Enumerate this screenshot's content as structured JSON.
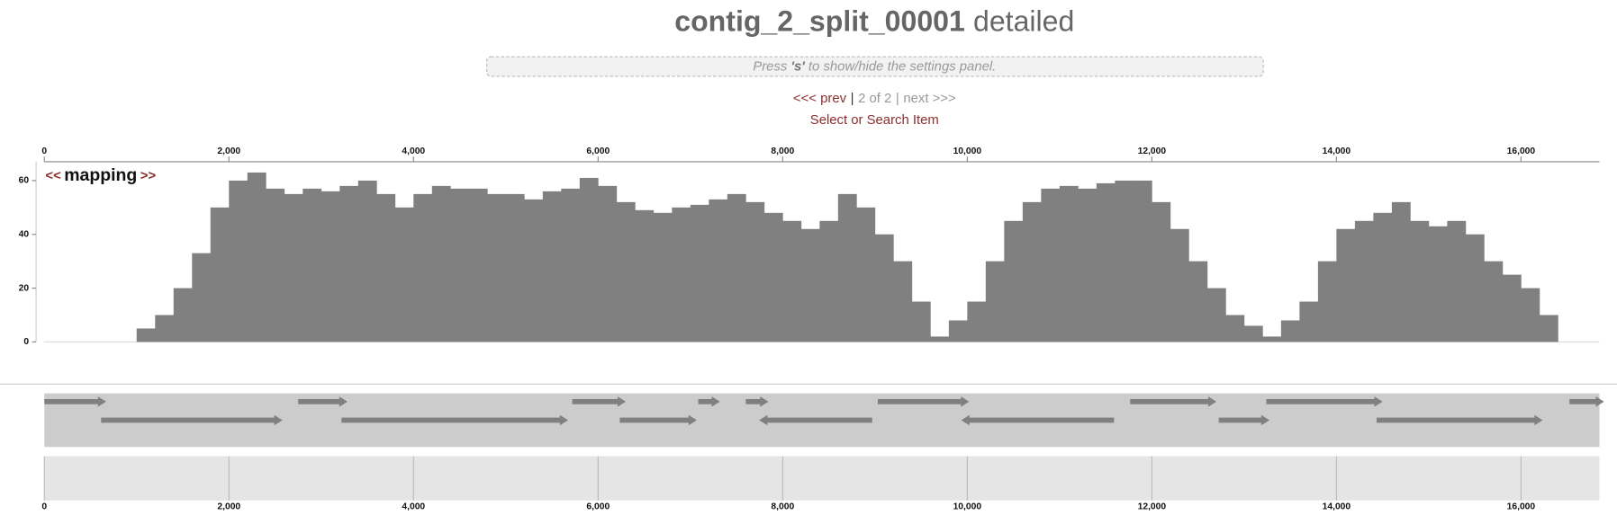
{
  "header": {
    "title": "contig_2_split_00001",
    "subtitle": "detailed",
    "settings_hint": {
      "before": "Press ",
      "key": "'s'",
      "after": " to show/hide the settings panel."
    },
    "nav": {
      "prev": "<<< prev",
      "separator": "|",
      "position": "2 of 2",
      "next": "next >>>"
    },
    "search": "Select or Search Item"
  },
  "chart_data": {
    "type": "area",
    "color": "#808080",
    "layer": {
      "prev": "<<",
      "name": "mapping",
      "next": ">>"
    },
    "x": [
      0,
      200,
      400,
      600,
      800,
      1000,
      1200,
      1400,
      1600,
      1800,
      2000,
      2200,
      2400,
      2600,
      2800,
      3000,
      3200,
      3400,
      3600,
      3800,
      4000,
      4200,
      4400,
      4600,
      4800,
      5000,
      5200,
      5400,
      5600,
      5800,
      6000,
      6200,
      6400,
      6600,
      6800,
      7000,
      7200,
      7400,
      7600,
      7800,
      8000,
      8200,
      8400,
      8600,
      8800,
      9000,
      9200,
      9400,
      9600,
      9800,
      10000,
      10200,
      10400,
      10600,
      10800,
      11000,
      11200,
      11400,
      11600,
      11800,
      12000,
      12200,
      12400,
      12600,
      12800,
      13000,
      13200,
      13400,
      13600,
      13800,
      14000,
      14200,
      14400,
      14600,
      14800,
      15000,
      15200,
      15400,
      15600,
      15800,
      16000,
      16200,
      16400,
      16600,
      16800
    ],
    "values": [
      0,
      0,
      0,
      0,
      0,
      5,
      10,
      20,
      33,
      50,
      60,
      63,
      57,
      55,
      57,
      56,
      58,
      60,
      55,
      50,
      55,
      58,
      57,
      57,
      55,
      55,
      53,
      56,
      57,
      61,
      58,
      52,
      49,
      48,
      50,
      51,
      53,
      55,
      52,
      48,
      45,
      42,
      45,
      55,
      50,
      40,
      30,
      15,
      2,
      8,
      15,
      30,
      45,
      52,
      57,
      58,
      57,
      59,
      60,
      60,
      52,
      42,
      30,
      20,
      10,
      6,
      2,
      8,
      15,
      30,
      42,
      45,
      48,
      52,
      45,
      43,
      45,
      40,
      30,
      25,
      20,
      10,
      0,
      0,
      0
    ],
    "xlim": [
      0,
      16850
    ],
    "ylim": [
      0,
      67
    ],
    "xticks": [
      0,
      {
        "value": 2000,
        "label": "2,000"
      },
      {
        "value": 4000,
        "label": "4,000"
      },
      {
        "value": 6000,
        "label": "6,000"
      },
      {
        "value": 8000,
        "label": "8,000"
      },
      {
        "value": 10000,
        "label": "10,000"
      },
      {
        "value": 12000,
        "label": "12,000"
      },
      {
        "value": 14000,
        "label": "14,000"
      },
      {
        "value": 16000,
        "label": "16,000"
      }
    ],
    "yticks": [
      0,
      20,
      40,
      60
    ]
  },
  "genes": {
    "color": "#808080",
    "items": [
      {
        "start": 0,
        "stop": 670,
        "direction": "f"
      },
      {
        "start": 615,
        "stop": 2580,
        "direction": "f"
      },
      {
        "start": 2750,
        "stop": 3285,
        "direction": "f"
      },
      {
        "start": 3220,
        "stop": 5675,
        "direction": "f"
      },
      {
        "start": 5720,
        "stop": 6300,
        "direction": "f"
      },
      {
        "start": 6235,
        "stop": 7070,
        "direction": "f"
      },
      {
        "start": 7085,
        "stop": 7320,
        "direction": "f"
      },
      {
        "start": 7600,
        "stop": 7845,
        "direction": "f"
      },
      {
        "start": 7745,
        "stop": 8970,
        "direction": "r"
      },
      {
        "start": 9030,
        "stop": 10020,
        "direction": "f"
      },
      {
        "start": 9935,
        "stop": 11590,
        "direction": "r"
      },
      {
        "start": 11765,
        "stop": 12700,
        "direction": "f"
      },
      {
        "start": 12725,
        "stop": 13275,
        "direction": "f"
      },
      {
        "start": 13240,
        "stop": 14500,
        "direction": "f"
      },
      {
        "start": 14435,
        "stop": 16235,
        "direction": "f"
      },
      {
        "start": 16525,
        "stop": 16900,
        "direction": "f"
      }
    ]
  }
}
